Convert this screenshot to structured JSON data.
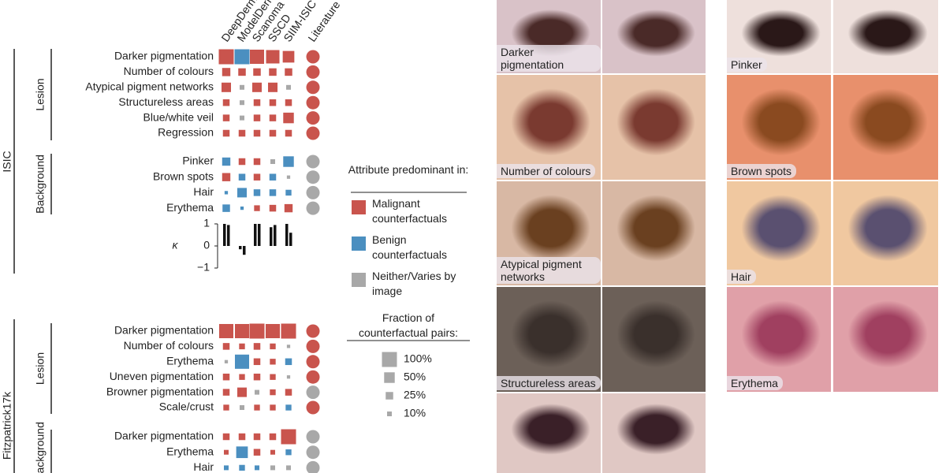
{
  "models": [
    "DeepDerm",
    "ModelDerm",
    "Scanoma",
    "SSCD",
    "SIIM-ISIC"
  ],
  "literature_header": "Literature",
  "sections": [
    {
      "dataset": "ISIC",
      "groups": [
        {
          "name": "Lesion",
          "rows": [
            {
              "label": "Darker pigmentation",
              "fractions": [
                100,
                100,
                90,
                80,
                60
              ],
              "colors": [
                "#c9544d",
                "#4b8fc0",
                "#c9544d",
                "#c9544d",
                "#c9544d"
              ],
              "literature": "#c9544d"
            },
            {
              "label": "Number of colours",
              "fractions": [
                30,
                25,
                25,
                25,
                25
              ],
              "colors": [
                "#c9544d",
                "#c9544d",
                "#c9544d",
                "#c9544d",
                "#c9544d"
              ],
              "literature": "#c9544d"
            },
            {
              "label": "Atypical pigment networks",
              "fractions": [
                40,
                10,
                40,
                40,
                10
              ],
              "colors": [
                "#c9544d",
                "#a8a8a8",
                "#c9544d",
                "#c9544d",
                "#a8a8a8"
              ],
              "literature": "#c9544d"
            },
            {
              "label": "Structureless areas",
              "fractions": [
                20,
                10,
                20,
                20,
                20
              ],
              "colors": [
                "#c9544d",
                "#a8a8a8",
                "#c9544d",
                "#c9544d",
                "#c9544d"
              ],
              "literature": "#c9544d"
            },
            {
              "label": "Blue/white veil",
              "fractions": [
                20,
                10,
                20,
                20,
                50
              ],
              "colors": [
                "#c9544d",
                "#a8a8a8",
                "#c9544d",
                "#c9544d",
                "#c9544d"
              ],
              "literature": "#c9544d"
            },
            {
              "label": "Regression",
              "fractions": [
                20,
                20,
                20,
                20,
                20
              ],
              "colors": [
                "#c9544d",
                "#c9544d",
                "#c9544d",
                "#c9544d",
                "#c9544d"
              ],
              "literature": "#c9544d"
            }
          ]
        },
        {
          "name": "Background",
          "rows": [
            {
              "label": "Pinker",
              "fractions": [
                30,
                20,
                20,
                10,
                50
              ],
              "colors": [
                "#4b8fc0",
                "#c9544d",
                "#c9544d",
                "#a8a8a8",
                "#4b8fc0"
              ],
              "literature": "#a8a8a8"
            },
            {
              "label": "Brown spots",
              "fractions": [
                30,
                20,
                20,
                20,
                5
              ],
              "colors": [
                "#c9544d",
                "#4b8fc0",
                "#c9544d",
                "#4b8fc0",
                "#a8a8a8"
              ],
              "literature": "#a8a8a8"
            },
            {
              "label": "Hair",
              "fractions": [
                5,
                40,
                20,
                20,
                15
              ],
              "colors": [
                "#4b8fc0",
                "#4b8fc0",
                "#4b8fc0",
                "#4b8fc0",
                "#4b8fc0"
              ],
              "literature": "#a8a8a8"
            },
            {
              "label": "Erythema",
              "fractions": [
                25,
                5,
                15,
                20,
                30
              ],
              "colors": [
                "#4b8fc0",
                "#4b8fc0",
                "#c9544d",
                "#c9544d",
                "#c9544d"
              ],
              "literature": "#a8a8a8"
            }
          ]
        }
      ],
      "kappa": {
        "label": "κ",
        "ylim": [
          -1,
          1
        ],
        "yticks": [
          {
            "value": 1,
            "label": "1"
          },
          {
            "value": 0,
            "label": "0"
          },
          {
            "value": -1,
            "label": "−1"
          }
        ],
        "values": [
          [
            1,
            0.95
          ],
          [
            -0.15,
            -0.4
          ],
          [
            1,
            1
          ],
          [
            0.85,
            0.95
          ],
          [
            1,
            0.6
          ]
        ]
      }
    },
    {
      "dataset": "Fitzpatrick17k",
      "groups": [
        {
          "name": "Lesion",
          "rows": [
            {
              "label": "Darker pigmentation",
              "fractions": [
                90,
                90,
                100,
                90,
                100
              ],
              "colors": [
                "#c9544d",
                "#c9544d",
                "#c9544d",
                "#c9544d",
                "#c9544d"
              ],
              "literature": "#c9544d"
            },
            {
              "label": "Number of colours",
              "fractions": [
                20,
                15,
                20,
                15,
                5
              ],
              "colors": [
                "#c9544d",
                "#c9544d",
                "#c9544d",
                "#c9544d",
                "#a8a8a8"
              ],
              "literature": "#c9544d"
            },
            {
              "label": "Erythema",
              "fractions": [
                5,
                90,
                20,
                15,
                20
              ],
              "colors": [
                "#a8a8a8",
                "#4b8fc0",
                "#c9544d",
                "#c9544d",
                "#4b8fc0"
              ],
              "literature": "#c9544d"
            },
            {
              "label": "Uneven pigmentation",
              "fractions": [
                20,
                15,
                20,
                15,
                5
              ],
              "colors": [
                "#c9544d",
                "#c9544d",
                "#c9544d",
                "#c9544d",
                "#a8a8a8"
              ],
              "literature": "#c9544d"
            },
            {
              "label": "Browner pigmentation",
              "fractions": [
                20,
                40,
                10,
                15,
                20
              ],
              "colors": [
                "#c9544d",
                "#c9544d",
                "#a8a8a8",
                "#c9544d",
                "#c9544d"
              ],
              "literature": "#a8a8a8"
            },
            {
              "label": "Scale/crust",
              "fractions": [
                15,
                10,
                15,
                15,
                15
              ],
              "colors": [
                "#c9544d",
                "#a8a8a8",
                "#c9544d",
                "#c9544d",
                "#4b8fc0"
              ],
              "literature": "#c9544d"
            }
          ]
        },
        {
          "name": "Background",
          "rows": [
            {
              "label": "Darker pigmentation",
              "fractions": [
                20,
                20,
                20,
                20,
                100
              ],
              "colors": [
                "#c9544d",
                "#c9544d",
                "#c9544d",
                "#c9544d",
                "#c9544d"
              ],
              "literature": "#a8a8a8"
            },
            {
              "label": "Erythema",
              "fractions": [
                10,
                60,
                20,
                10,
                15
              ],
              "colors": [
                "#c9544d",
                "#4b8fc0",
                "#c9544d",
                "#c9544d",
                "#4b8fc0"
              ],
              "literature": "#a8a8a8"
            },
            {
              "label": "Hair",
              "fractions": [
                10,
                15,
                10,
                10,
                10
              ],
              "colors": [
                "#4b8fc0",
                "#4b8fc0",
                "#4b8fc0",
                "#a8a8a8",
                "#a8a8a8"
              ],
              "literature": "#a8a8a8"
            }
          ]
        }
      ]
    }
  ],
  "legend": {
    "title": "Attribute predominant in:",
    "entries": [
      {
        "label": "Malignant counterfactuals",
        "color": "#c9544d"
      },
      {
        "label": "Benign counterfactuals",
        "color": "#4b8fc0"
      },
      {
        "label": "Neither/Varies by image",
        "color": "#a8a8a8"
      }
    ]
  },
  "size_legend": {
    "title": "Fraction of counterfactual pairs:",
    "sizes": [
      {
        "value": 100,
        "label": "100%"
      },
      {
        "value": 50,
        "label": "50%"
      },
      {
        "value": 25,
        "label": "25%"
      },
      {
        "value": 10,
        "label": "10%"
      }
    ]
  },
  "image_labels_left": [
    "Darker pigmentation",
    "Number of colours",
    "Atypical pigment networks",
    "Structureless areas"
  ],
  "image_labels_right": [
    "Pinker",
    "Brown spots",
    "Hair",
    "Erythema"
  ]
}
